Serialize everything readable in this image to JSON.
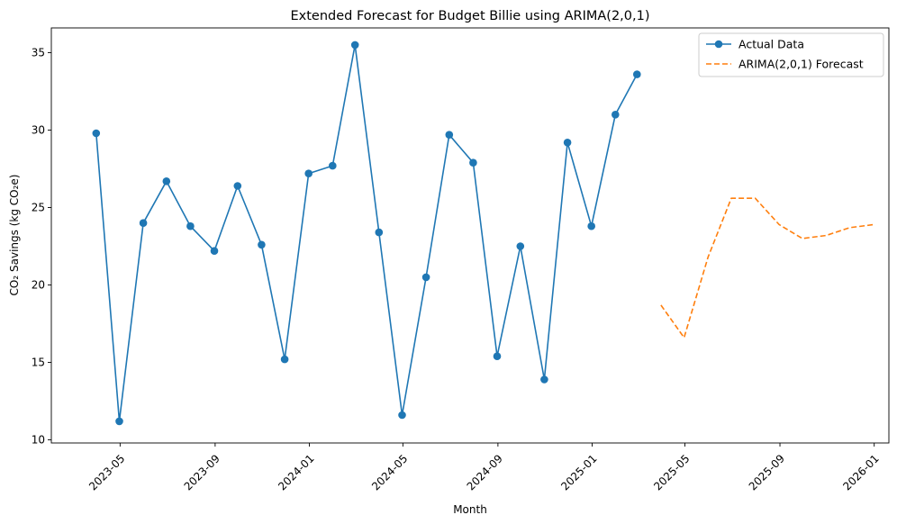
{
  "chart_data": {
    "type": "line",
    "title": "Extended Forecast for Budget Billie using ARIMA(2,0,1)",
    "xlabel": "Month",
    "ylabel": "CO₂ Savings (kg CO₂e)",
    "xlim": [
      "2023-02-01",
      "2026-01-20"
    ],
    "ylim": [
      9.8,
      36.6
    ],
    "x_ticks": [
      "2023-05",
      "2023-09",
      "2024-01",
      "2024-05",
      "2024-09",
      "2025-01",
      "2025-05",
      "2025-09",
      "2026-01"
    ],
    "y_ticks": [
      10,
      15,
      20,
      25,
      30,
      35
    ],
    "grid": false,
    "legend_position": "upper-right",
    "series": [
      {
        "name": "Actual Data",
        "color": "#1f77b4",
        "style": "solid",
        "marker": "circle",
        "x": [
          "2023-03-31",
          "2023-04-30",
          "2023-05-31",
          "2023-06-30",
          "2023-07-31",
          "2023-08-31",
          "2023-09-30",
          "2023-10-31",
          "2023-11-30",
          "2023-12-31",
          "2024-01-31",
          "2024-02-29",
          "2024-03-31",
          "2024-04-30",
          "2024-05-31",
          "2024-06-30",
          "2024-07-31",
          "2024-08-31",
          "2024-09-30",
          "2024-10-31",
          "2024-11-30",
          "2024-12-31",
          "2025-01-31",
          "2025-02-28"
        ],
        "y": [
          29.8,
          11.2,
          24.0,
          26.7,
          23.8,
          22.2,
          26.4,
          22.6,
          15.2,
          27.2,
          27.7,
          35.5,
          23.4,
          11.6,
          20.5,
          29.7,
          27.9,
          15.4,
          22.5,
          13.9,
          29.2,
          23.8,
          31.0,
          33.6
        ]
      },
      {
        "name": "ARIMA(2,0,1) Forecast",
        "color": "#ff7f0e",
        "style": "dashed",
        "marker": "none",
        "x": [
          "2025-03-31",
          "2025-04-30",
          "2025-05-31",
          "2025-06-30",
          "2025-07-31",
          "2025-08-31",
          "2025-09-30",
          "2025-10-31",
          "2025-11-30",
          "2025-12-31"
        ],
        "y": [
          18.7,
          16.6,
          21.8,
          25.6,
          25.6,
          23.9,
          23.0,
          23.2,
          23.7,
          23.9
        ]
      }
    ]
  }
}
